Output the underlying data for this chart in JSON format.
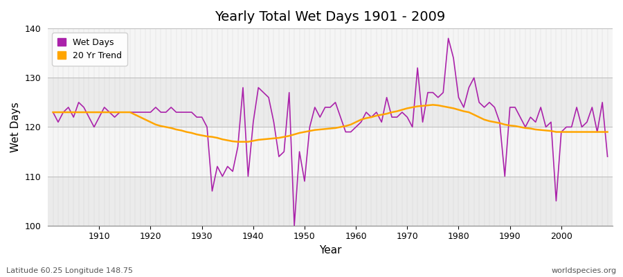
{
  "title": "Yearly Total Wet Days 1901 - 2009",
  "xlabel": "Year",
  "ylabel": "Wet Days",
  "footnote_left": "Latitude 60.25 Longitude 148.75",
  "footnote_right": "worldspecies.org",
  "line_color": "#AA22AA",
  "trend_color": "#FFA500",
  "plot_bg": "#F0F0F0",
  "fig_bg": "#FFFFFF",
  "ylim": [
    100,
    140
  ],
  "yticks": [
    100,
    110,
    120,
    130,
    140
  ],
  "xlim": [
    1900,
    2010
  ],
  "xticks": [
    1910,
    1920,
    1930,
    1940,
    1950,
    1960,
    1970,
    1980,
    1990,
    2000
  ],
  "years": [
    1901,
    1902,
    1903,
    1904,
    1905,
    1906,
    1907,
    1908,
    1909,
    1910,
    1911,
    1912,
    1913,
    1914,
    1915,
    1916,
    1917,
    1918,
    1919,
    1920,
    1921,
    1922,
    1923,
    1924,
    1925,
    1926,
    1927,
    1928,
    1929,
    1930,
    1931,
    1932,
    1933,
    1934,
    1935,
    1936,
    1937,
    1938,
    1939,
    1940,
    1941,
    1942,
    1943,
    1944,
    1945,
    1946,
    1947,
    1948,
    1949,
    1950,
    1951,
    1952,
    1953,
    1954,
    1955,
    1956,
    1957,
    1958,
    1959,
    1960,
    1961,
    1962,
    1963,
    1964,
    1965,
    1966,
    1967,
    1968,
    1969,
    1970,
    1971,
    1972,
    1973,
    1974,
    1975,
    1976,
    1977,
    1978,
    1979,
    1980,
    1981,
    1982,
    1983,
    1984,
    1985,
    1986,
    1987,
    1988,
    1989,
    1990,
    1991,
    1992,
    1993,
    1994,
    1995,
    1996,
    1997,
    1998,
    1999,
    2000,
    2001,
    2002,
    2003,
    2004,
    2005,
    2006,
    2007,
    2008,
    2009
  ],
  "wet_days": [
    123,
    121,
    123,
    124,
    122,
    125,
    124,
    122,
    120,
    122,
    124,
    123,
    122,
    123,
    123,
    123,
    123,
    123,
    123,
    123,
    124,
    123,
    123,
    124,
    123,
    123,
    123,
    123,
    122,
    122,
    120,
    107,
    112,
    110,
    112,
    111,
    116,
    128,
    110,
    121,
    128,
    127,
    126,
    121,
    114,
    115,
    127,
    100,
    115,
    109,
    120,
    124,
    122,
    124,
    124,
    125,
    122,
    119,
    119,
    120,
    121,
    123,
    122,
    123,
    121,
    126,
    122,
    122,
    123,
    122,
    120,
    132,
    121,
    127,
    127,
    126,
    127,
    138,
    134,
    126,
    124,
    128,
    130,
    125,
    124,
    125,
    124,
    121,
    110,
    124,
    124,
    122,
    120,
    122,
    121,
    124,
    120,
    121,
    105,
    119,
    120,
    120,
    124,
    120,
    121,
    124,
    119,
    125,
    114
  ],
  "trend": [
    123.0,
    123.0,
    123.0,
    123.0,
    123.0,
    123.0,
    123.0,
    123.0,
    123.0,
    123.0,
    123.0,
    123.0,
    123.0,
    123.0,
    123.0,
    123.0,
    122.5,
    122.0,
    121.5,
    121.0,
    120.5,
    120.2,
    120.0,
    119.8,
    119.5,
    119.3,
    119.0,
    118.8,
    118.5,
    118.3,
    118.1,
    118.0,
    117.8,
    117.5,
    117.3,
    117.1,
    117.0,
    117.0,
    117.0,
    117.2,
    117.4,
    117.5,
    117.6,
    117.7,
    117.8,
    118.0,
    118.2,
    118.5,
    118.8,
    119.0,
    119.2,
    119.4,
    119.5,
    119.6,
    119.7,
    119.8,
    120.0,
    120.2,
    120.5,
    121.0,
    121.5,
    121.8,
    122.0,
    122.3,
    122.5,
    122.7,
    123.0,
    123.2,
    123.5,
    123.8,
    124.0,
    124.2,
    124.3,
    124.4,
    124.5,
    124.4,
    124.2,
    124.0,
    123.8,
    123.5,
    123.2,
    123.0,
    122.5,
    122.0,
    121.5,
    121.2,
    121.0,
    120.8,
    120.5,
    120.3,
    120.2,
    120.0,
    119.8,
    119.7,
    119.5,
    119.4,
    119.3,
    119.2,
    119.0,
    119.0,
    119.0,
    119.0,
    119.0,
    119.0,
    119.0,
    119.0,
    119.0,
    119.0,
    119.0
  ]
}
